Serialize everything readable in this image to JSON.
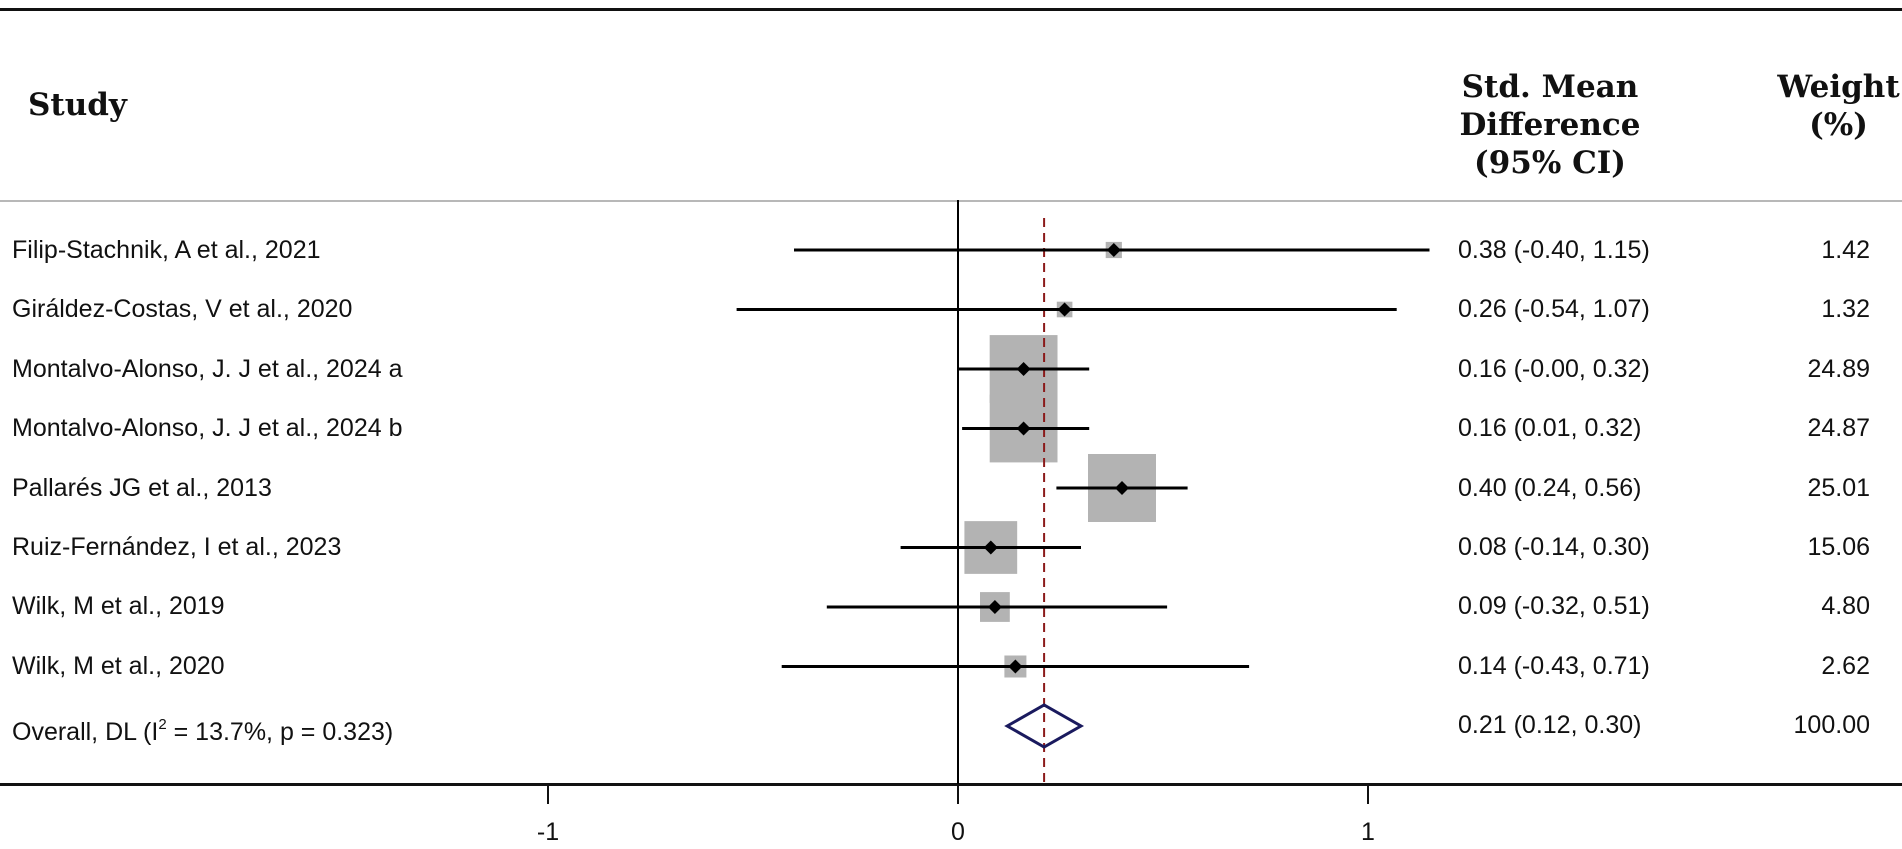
{
  "headers": {
    "study": "Study",
    "smd_line1": "Std. Mean Difference",
    "smd_line2": "(95% CI)",
    "weight_line1": "Weight",
    "weight_line2": "(%)"
  },
  "overall": {
    "label_prefix": "Overall, DL (I",
    "label_sup": "2",
    "label_suffix": " = 13.7%, p = 0.323)",
    "est": 0.21,
    "lo": 0.12,
    "hi": 0.3,
    "est_text": "0.21 (0.12, 0.30)",
    "weight_text": "100.00"
  },
  "colors": {
    "weight_box": "#b3b3b3",
    "ci_line": "#000000",
    "null_line": "#000000",
    "overall_line": "#8b1a1a",
    "diamond": "#1a1a5e"
  },
  "chart_data": {
    "type": "forest",
    "measure": "Std. Mean Difference (95% CI)",
    "xlim": [
      -1.0,
      1.0
    ],
    "xticks": [
      -1,
      0,
      1
    ],
    "xtick_labels": [
      "-1",
      "0",
      "1"
    ],
    "null_value": 0,
    "overall_estimate": 0.21,
    "studies": [
      {
        "study": "Filip-Stachnik, A et al., 2021",
        "est": 0.38,
        "lo": -0.4,
        "hi": 1.15,
        "weight": 1.42,
        "est_text": "0.38 (-0.40, 1.15)",
        "weight_text": "1.42"
      },
      {
        "study": "Giráldez-Costas, V et al., 2020",
        "est": 0.26,
        "lo": -0.54,
        "hi": 1.07,
        "weight": 1.32,
        "est_text": "0.26 (-0.54, 1.07)",
        "weight_text": "1.32"
      },
      {
        "study": "Montalvo-Alonso, J. J et al., 2024 a",
        "est": 0.16,
        "lo": -0.0,
        "hi": 0.32,
        "weight": 24.89,
        "est_text": "0.16 (-0.00, 0.32)",
        "weight_text": "24.89"
      },
      {
        "study": "Montalvo-Alonso, J. J et al., 2024 b",
        "est": 0.16,
        "lo": 0.01,
        "hi": 0.32,
        "weight": 24.87,
        "est_text": "0.16 (0.01, 0.32)",
        "weight_text": "24.87"
      },
      {
        "study": "Pallarés JG et al., 2013",
        "est": 0.4,
        "lo": 0.24,
        "hi": 0.56,
        "weight": 25.01,
        "est_text": "0.40 (0.24, 0.56)",
        "weight_text": "25.01"
      },
      {
        "study": "Ruiz-Fernández, I et al., 2023",
        "est": 0.08,
        "lo": -0.14,
        "hi": 0.3,
        "weight": 15.06,
        "est_text": "0.08 (-0.14, 0.30)",
        "weight_text": "15.06"
      },
      {
        "study": "Wilk, M et al., 2019",
        "est": 0.09,
        "lo": -0.32,
        "hi": 0.51,
        "weight": 4.8,
        "est_text": "0.09 (-0.32, 0.51)",
        "weight_text": "4.80"
      },
      {
        "study": "Wilk, M et al., 2020",
        "est": 0.14,
        "lo": -0.43,
        "hi": 0.71,
        "weight": 2.62,
        "est_text": "0.14 (-0.43, 0.71)",
        "weight_text": "2.62"
      }
    ]
  }
}
